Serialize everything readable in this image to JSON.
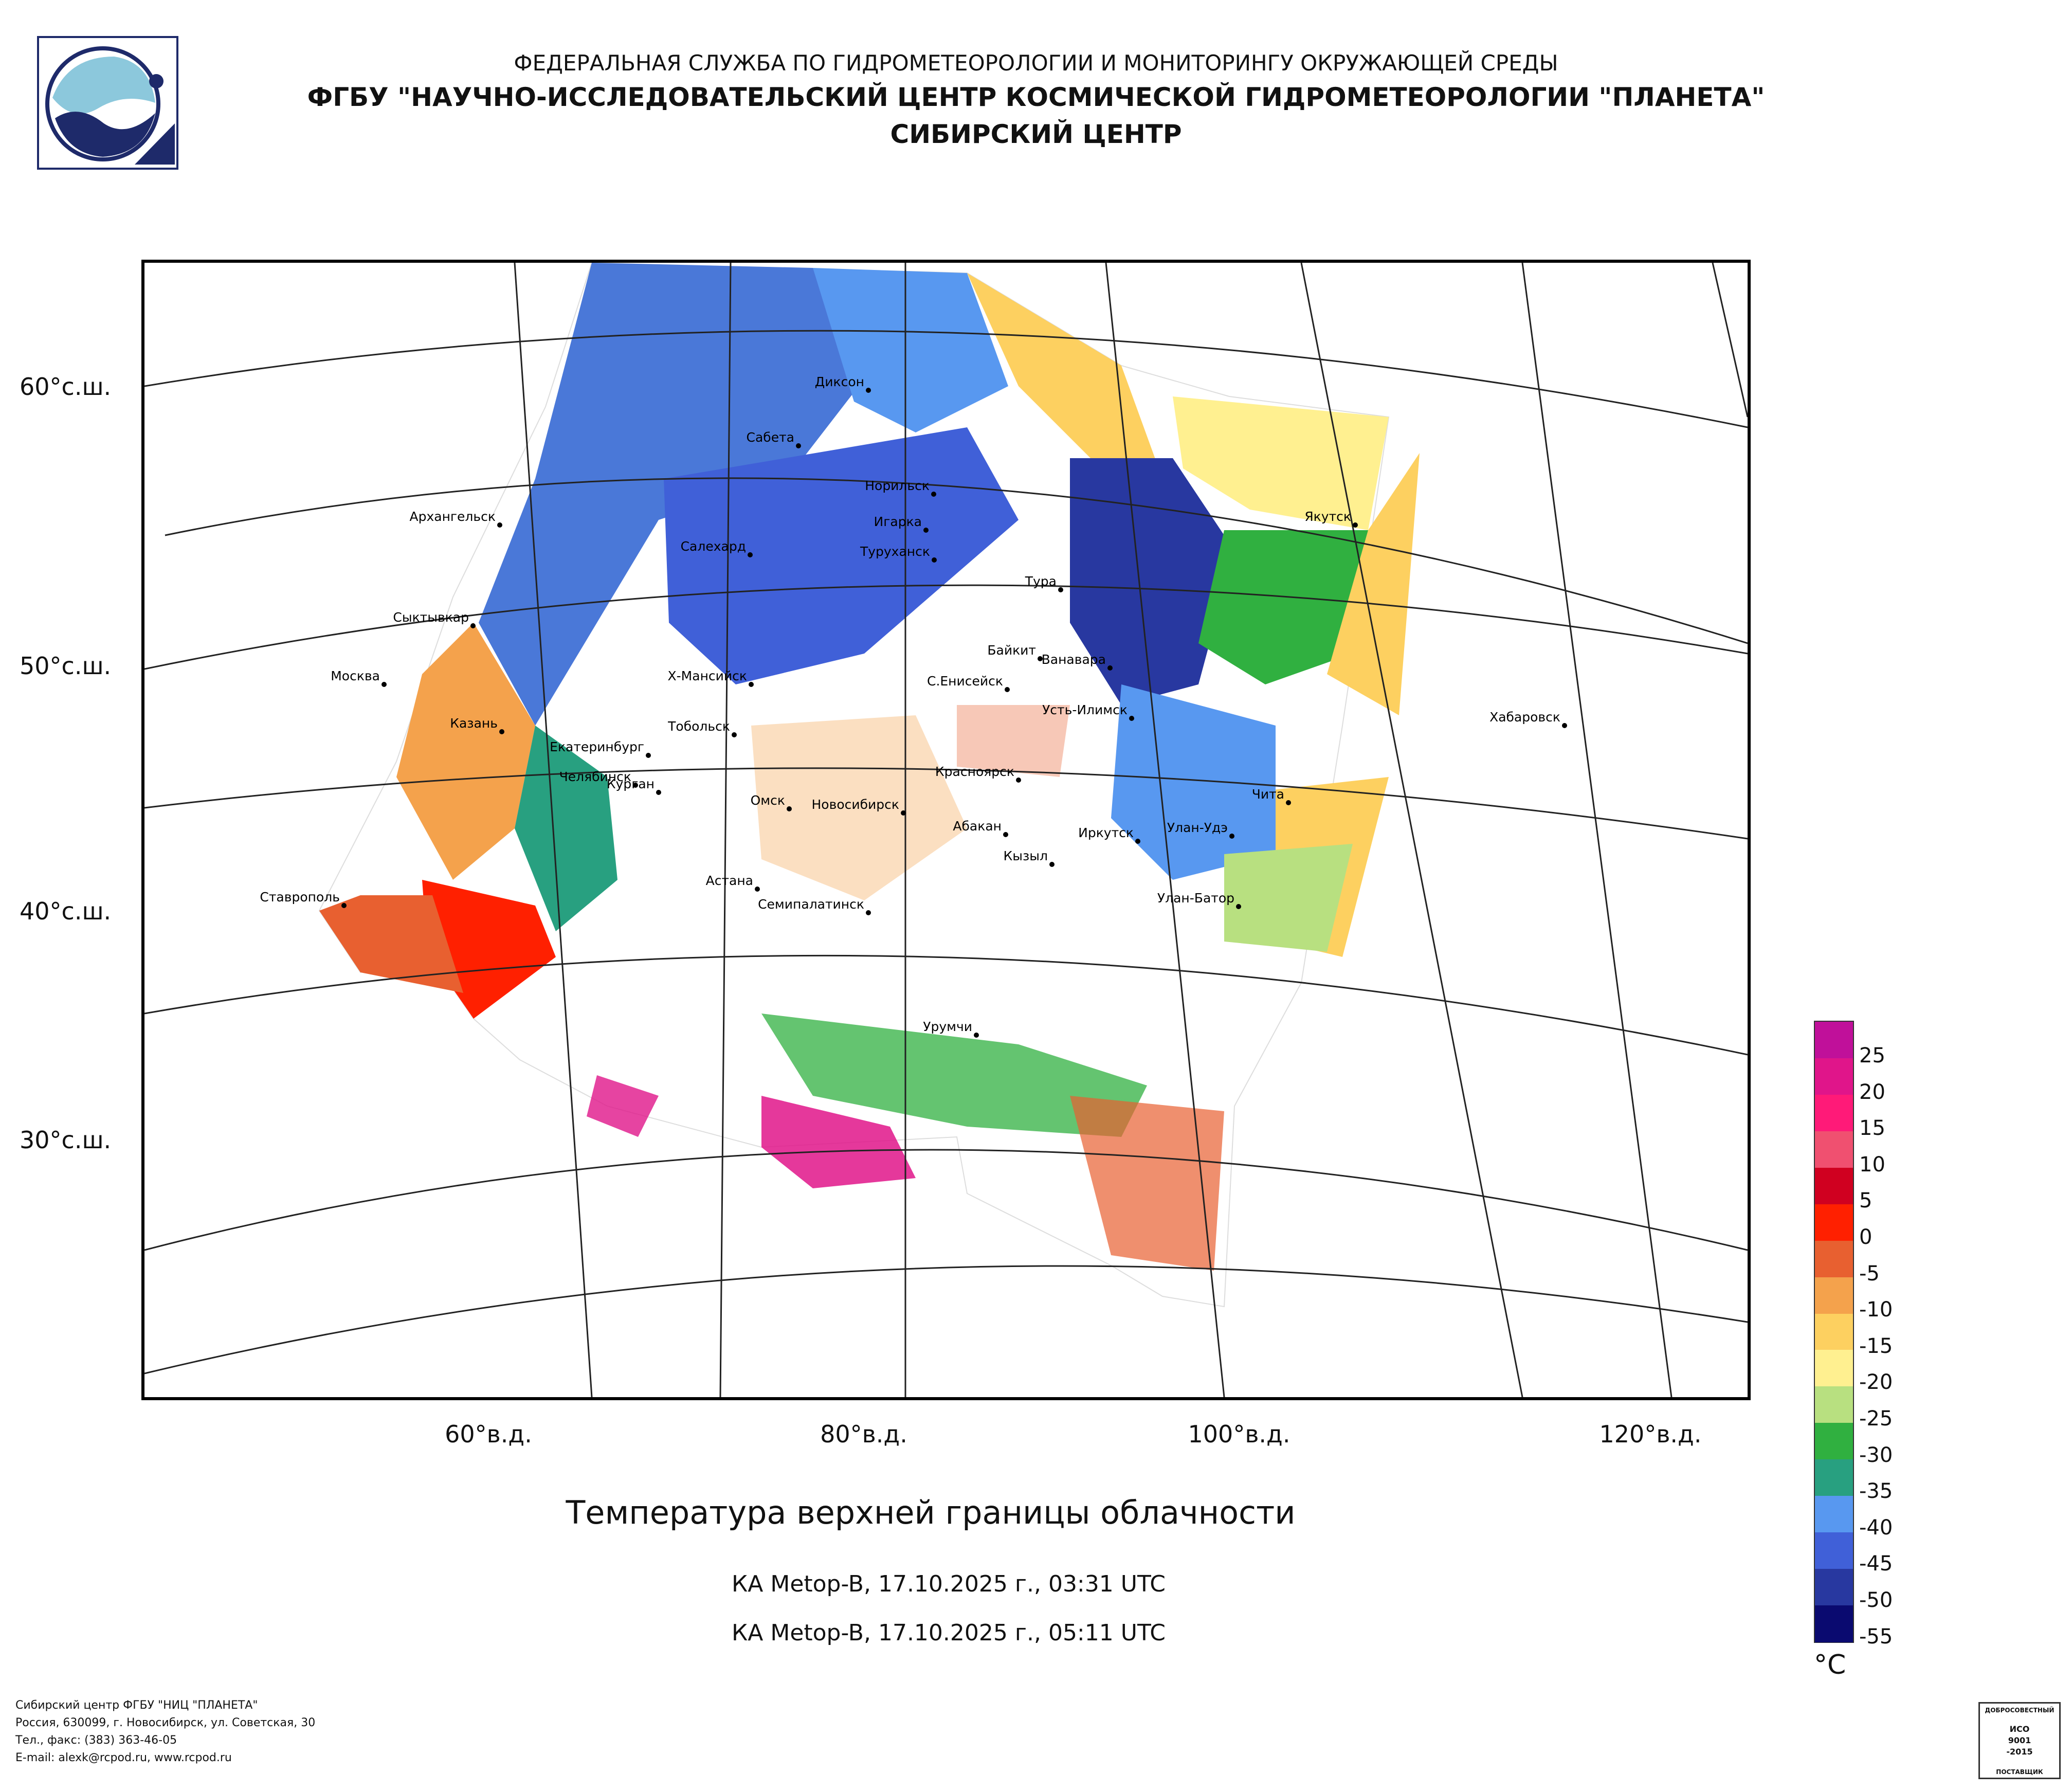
{
  "header": {
    "line1": "ФЕДЕРАЛЬНАЯ СЛУЖБА ПО ГИДРОМЕТЕОРОЛОГИИ И МОНИТОРИНГУ ОКРУЖАЮЩЕЙ СРЕДЫ",
    "line2": "ФГБУ \"НАУЧНО-ИССЛЕДОВАТЕЛЬСКИЙ ЦЕНТР КОСМИЧЕСКОЙ ГИДРОМЕТЕОРОЛОГИИ \"ПЛАНЕТА\"",
    "line3": "СИБИРСКИЙ ЦЕНТР"
  },
  "map": {
    "lat_labels": [
      "60°с.ш.",
      "50°с.ш.",
      "40°с.ш.",
      "30°с.ш."
    ],
    "lon_labels": [
      "60°в.д.",
      "80°в.д.",
      "100°в.д.",
      "120°в.д."
    ],
    "cities": [
      "Диксон",
      "Сабета",
      "Норильск",
      "Игарка",
      "Туруханск",
      "Тура",
      "Якутск",
      "Архангельск",
      "Салехард",
      "Сыктывкар",
      "Москва",
      "Х-Мансийск",
      "Байкит",
      "Ванавара",
      "С.Енисейск",
      "Усть-Илимск",
      "Хабаровск",
      "Казань",
      "Тобольск",
      "Екатеринбург",
      "Челябинск",
      "Курган",
      "Красноярск",
      "Чита",
      "Омск",
      "Новосибирск",
      "Абакан",
      "Улан-Удэ",
      "Иркутск",
      "Кызыл",
      "Астана",
      "Ставрополь",
      "Семипалатинск",
      "Улан-Батор",
      "Урумчи"
    ]
  },
  "title": "Температура верхней границы облачности",
  "passes": [
    "КА Metop-B, 17.10.2025 г., 03:31 UTC",
    "КА Metop-B, 17.10.2025 г., 05:11 UTC"
  ],
  "legend": {
    "unit": "°C",
    "labels": [
      "25",
      "20",
      "15",
      "10",
      "5",
      "0",
      "-5",
      "-10",
      "-15",
      "-20",
      "-25",
      "-30",
      "-35",
      "-40",
      "-45",
      "-50",
      "-55"
    ],
    "colors": [
      "#c0109a",
      "#e0158a",
      "#ff1a78",
      "#f05070",
      "#d00020",
      "#ff2000",
      "#e86030",
      "#f4a24c",
      "#fdd060",
      "#fff090",
      "#b8e080",
      "#30b040",
      "#28a080",
      "#5898f0",
      "#4060d8",
      "#2838a0",
      "#0a0a70"
    ]
  },
  "footer": {
    "org": "Сибирский центр ФГБУ \"НИЦ \"ПЛАНЕТА\"",
    "address": "Россия, 630099, г. Новосибирск, ул. Советская, 30",
    "phone": "Тел., факс: (383) 363-46-05",
    "email": "E-mail: alexk@rcpod.ru, www.rcpod.ru"
  },
  "certificate": {
    "top": "ДОБРОСОВЕСТНЫЙ",
    "std1": "ИСО",
    "std2": "9001",
    "std3": "-2015",
    "bottom": "ПОСТАВЩИК"
  }
}
